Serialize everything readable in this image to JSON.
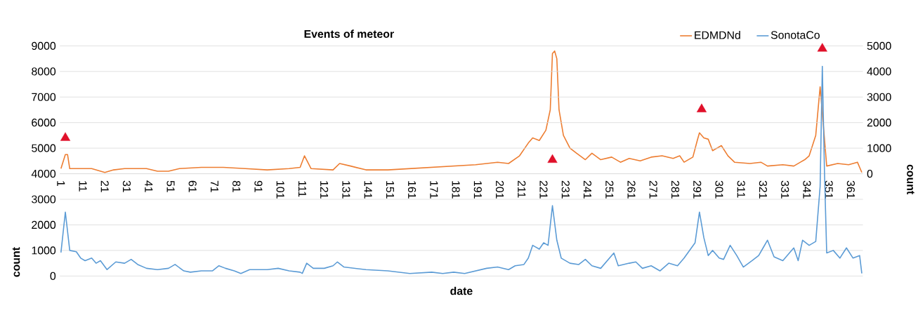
{
  "chart_data": {
    "type": "line",
    "title": "Events of meteor",
    "xlabel": "date",
    "ylabel": "count",
    "y2label": "count",
    "xlim": [
      0.5,
      366.5
    ],
    "xticks": [
      1,
      11,
      21,
      31,
      41,
      51,
      61,
      71,
      81,
      91,
      101,
      111,
      121,
      131,
      141,
      151,
      161,
      171,
      181,
      191,
      201,
      211,
      221,
      231,
      241,
      251,
      261,
      271,
      281,
      291,
      301,
      311,
      321,
      331,
      341,
      351,
      361
    ],
    "ylim": [
      0,
      9000
    ],
    "yticks": [
      0,
      1000,
      2000,
      3000,
      4000,
      5000,
      6000,
      7000,
      8000,
      9000
    ],
    "y2lim": [
      -4000,
      5000
    ],
    "y2ticks": [
      0,
      1000,
      2000,
      3000,
      4000,
      5000
    ],
    "grid": "y",
    "legend": "top right",
    "series": [
      {
        "name": "EDMDNd",
        "color": "#ed7d31",
        "axis": "y2",
        "x": [
          1,
          3,
          4,
          5,
          10,
          15,
          21,
          25,
          30,
          40,
          45,
          50,
          55,
          65,
          75,
          85,
          95,
          105,
          110,
          112,
          115,
          125,
          128,
          133,
          140,
          150,
          160,
          170,
          180,
          190,
          200,
          205,
          210,
          214,
          216,
          219,
          222,
          224,
          225,
          226,
          227,
          228,
          230,
          233,
          236,
          240,
          243,
          247,
          252,
          256,
          260,
          265,
          270,
          275,
          280,
          283,
          285,
          289,
          291,
          292,
          294,
          296,
          298,
          302,
          305,
          308,
          315,
          320,
          323,
          330,
          335,
          338,
          340,
          342,
          345,
          347,
          350,
          355,
          360,
          364,
          366
        ],
        "values": [
          200,
          750,
          750,
          200,
          200,
          200,
          50,
          150,
          200,
          200,
          100,
          100,
          200,
          250,
          250,
          200,
          150,
          200,
          250,
          700,
          200,
          150,
          400,
          300,
          150,
          150,
          200,
          250,
          300,
          350,
          450,
          400,
          700,
          1200,
          1400,
          1300,
          1700,
          2500,
          4700,
          4800,
          4500,
          2500,
          1500,
          1000,
          800,
          550,
          800,
          550,
          650,
          450,
          600,
          500,
          650,
          700,
          600,
          700,
          450,
          650,
          1300,
          1600,
          1400,
          1350,
          900,
          1100,
          700,
          450,
          400,
          450,
          300,
          350,
          300,
          450,
          550,
          700,
          1500,
          3400,
          300,
          400,
          350,
          450,
          50
        ]
      },
      {
        "name": "SonotaCo",
        "color": "#5b9bd5",
        "axis": "y",
        "x": [
          1,
          3,
          5,
          8,
          10,
          12,
          15,
          17,
          19,
          22,
          26,
          30,
          33,
          36,
          40,
          45,
          50,
          53,
          57,
          60,
          65,
          70,
          73,
          76,
          80,
          83,
          87,
          95,
          100,
          105,
          110,
          111,
          113,
          116,
          121,
          125,
          127,
          130,
          135,
          140,
          150,
          160,
          170,
          175,
          180,
          185,
          190,
          195,
          200,
          205,
          208,
          212,
          214,
          216,
          219,
          221,
          223,
          225,
          227,
          229,
          233,
          237,
          240,
          243,
          247,
          253,
          255,
          260,
          263,
          266,
          270,
          274,
          278,
          282,
          285,
          290,
          292,
          294,
          296,
          298,
          301,
          303,
          306,
          309,
          312,
          316,
          319,
          321,
          323,
          326,
          330,
          333,
          335,
          337,
          339,
          342,
          345,
          347,
          348,
          349,
          350,
          353,
          356,
          359,
          362,
          365,
          366
        ],
        "values": [
          920,
          2500,
          1000,
          950,
          700,
          600,
          700,
          500,
          600,
          250,
          550,
          500,
          650,
          450,
          300,
          250,
          300,
          450,
          200,
          150,
          200,
          200,
          400,
          300,
          200,
          100,
          250,
          250,
          300,
          200,
          150,
          100,
          500,
          300,
          300,
          400,
          550,
          350,
          300,
          250,
          200,
          100,
          150,
          100,
          150,
          100,
          200,
          300,
          350,
          250,
          400,
          450,
          700,
          1200,
          1050,
          1300,
          1200,
          2750,
          1400,
          700,
          500,
          450,
          650,
          400,
          300,
          900,
          400,
          500,
          550,
          300,
          400,
          200,
          500,
          400,
          700,
          1300,
          2500,
          1500,
          800,
          1000,
          700,
          650,
          1200,
          800,
          350,
          600,
          800,
          1100,
          1400,
          750,
          600,
          900,
          1100,
          600,
          1400,
          1200,
          1350,
          3500,
          8200,
          4000,
          900,
          1000,
          700,
          1100,
          700,
          800,
          100
        ]
      },
      {
        "type": "scatter",
        "color": "#e0102a",
        "axis": "y",
        "marker": "triangle",
        "x": [
          3,
          225,
          293,
          348
        ],
        "values": [
          5400,
          4540,
          6520,
          8890
        ]
      }
    ]
  }
}
